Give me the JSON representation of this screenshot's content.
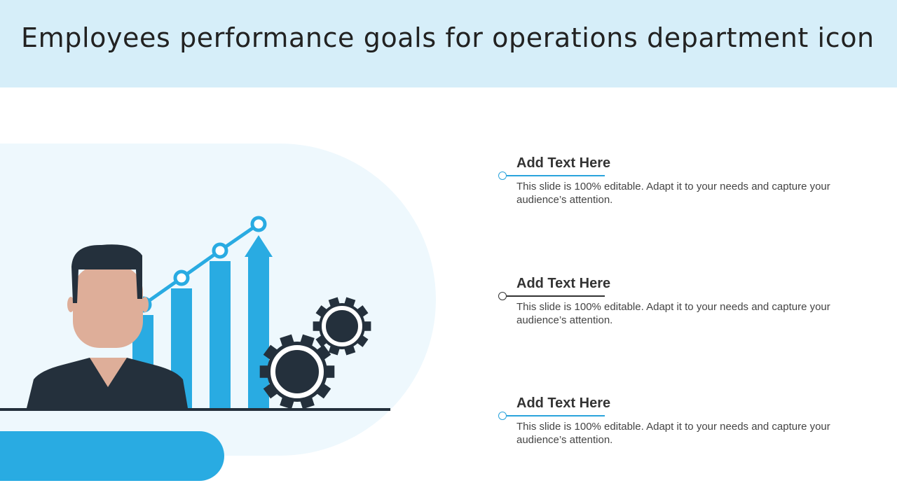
{
  "title": "Employees performance goals for operations department icon",
  "colors": {
    "header_bg": "#d6eef9",
    "accent": "#29abe2",
    "dark": "#24303c",
    "skin": "#deae99",
    "circle_bg": "#eef8fd"
  },
  "icons": [
    "person-icon",
    "bar-chart-icon",
    "growth-arrow-icon",
    "gear-icon"
  ],
  "items": [
    {
      "heading": "Add Text Here",
      "body": "This slide is 100% editable. Adapt it to your needs and capture your audience’s attention."
    },
    {
      "heading": "Add Text Here",
      "body": "This slide is 100% editable. Adapt it to your needs and capture your audience’s attention."
    },
    {
      "heading": "Add Text Here",
      "body": "This slide is 100% editable. Adapt it to your needs and capture your audience’s attention."
    }
  ]
}
